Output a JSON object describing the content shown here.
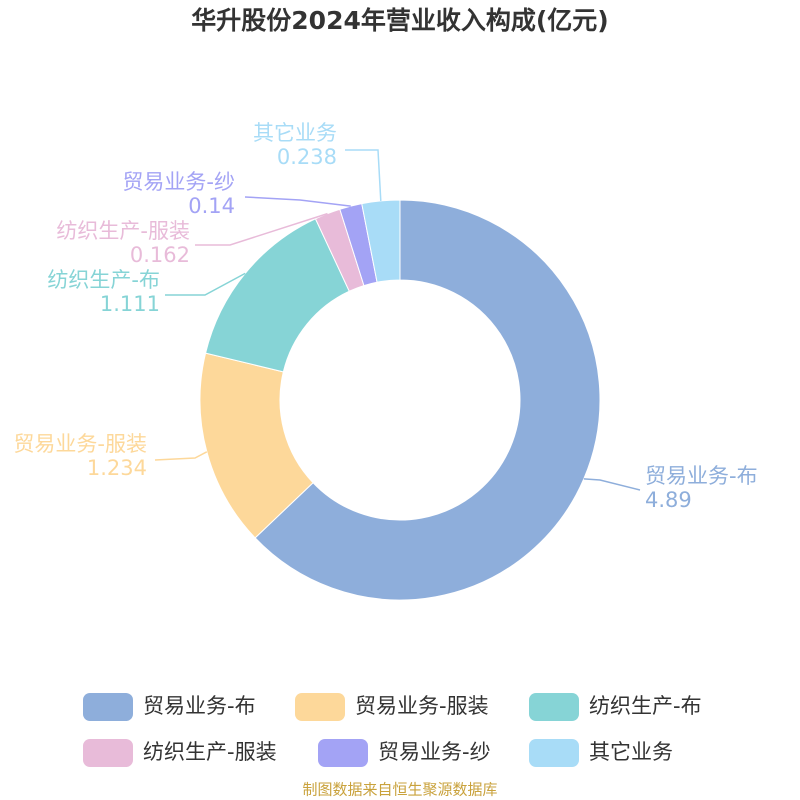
{
  "chart_data": {
    "type": "donut",
    "title": "华升股份2024年营业收入构成(亿元)",
    "categories": [
      "贸易业务-布",
      "贸易业务-服装",
      "纺织生产-布",
      "纺织生产-服装",
      "贸易业务-纱",
      "其它业务"
    ],
    "values": [
      4.89,
      1.234,
      1.111,
      0.162,
      0.14,
      0.238
    ],
    "colors": [
      "#8eaedb",
      "#fdd89a",
      "#86d4d6",
      "#e8bbd9",
      "#a3a3f5",
      "#a8dcf7"
    ],
    "source": "制图数据来自恒生聚源数据库"
  }
}
